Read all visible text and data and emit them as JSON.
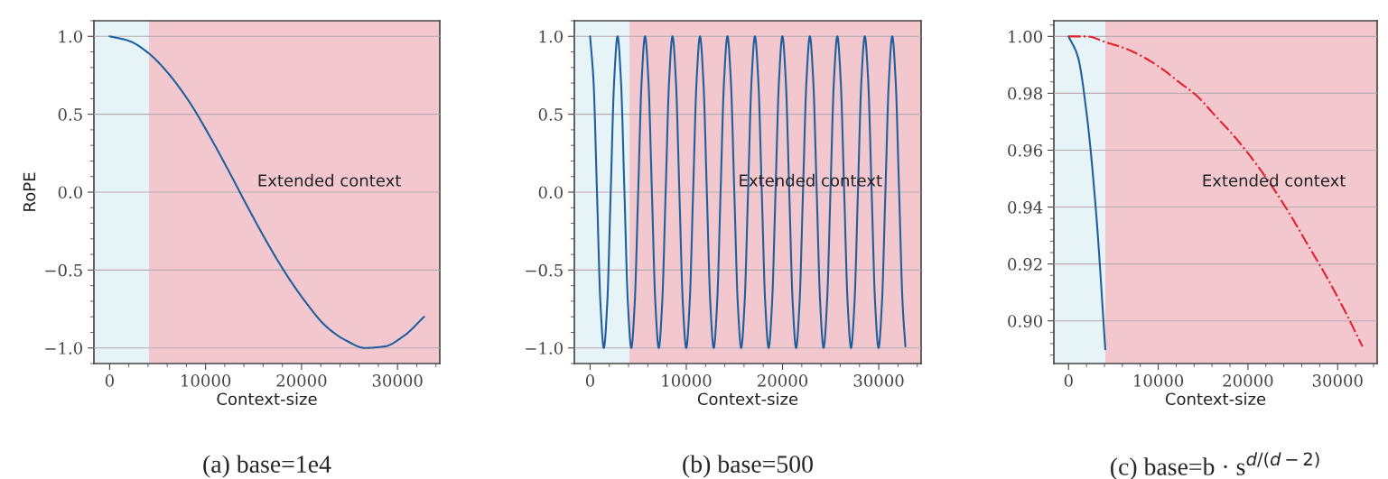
{
  "chart_data": [
    {
      "type": "line",
      "xlabel": "Context-size",
      "ylabel": "RoPE",
      "annotations": [
        "(a) base=1e4"
      ],
      "x": [
        0,
        2048,
        4096,
        6144,
        8192,
        10240,
        12288,
        14336,
        16384,
        18432,
        20480,
        22528,
        24576,
        26624,
        28672,
        30720,
        32768
      ],
      "series": [
        {
          "color": "#1f5f9e",
          "values": [
            1.0,
            0.97,
            0.89,
            0.76,
            0.59,
            0.38,
            0.15,
            -0.09,
            -0.32,
            -0.53,
            -0.71,
            -0.86,
            -0.95,
            -1.0,
            -0.99,
            -0.92,
            -0.8
          ]
        }
      ],
      "xlim": [
        -1638,
        34406
      ],
      "ylim": [
        -1.1,
        1.1
      ],
      "xticks": [
        0,
        10000,
        20000,
        30000
      ],
      "yticks": [
        {
          "value": -1.0,
          "label": "−1.0"
        },
        {
          "value": -0.5,
          "label": "−0.5"
        },
        {
          "value": 0.0,
          "label": "0.0"
        },
        {
          "value": 0.5,
          "label": "0.5"
        },
        {
          "value": 1.0,
          "label": "1.0"
        }
      ],
      "bands": [
        {
          "axis": "x",
          "from": -1638,
          "to": 4096,
          "color": "#e6f4f7"
        },
        {
          "axis": "x",
          "from": 4096,
          "to": 34406,
          "label": "Extended context",
          "color": "#f2c8ce"
        }
      ],
      "grid": "y",
      "marker": "none",
      "line_style": "solid"
    },
    {
      "type": "line",
      "xlabel": "Context-size",
      "annotations": [
        "(b) base=500"
      ],
      "x": [
        0,
        357,
        714,
        1071,
        1428,
        1785,
        2141,
        2498,
        2855,
        3212,
        3569,
        3926,
        4283,
        4640,
        4997,
        5353,
        5710,
        6067,
        6424,
        6781,
        7138,
        7495,
        7852,
        8209,
        8565,
        8922,
        9279,
        9636,
        9993,
        10350,
        10707,
        11064,
        11421,
        11777,
        12134,
        12491,
        12848,
        13205,
        13562,
        13919,
        14276,
        14633,
        14989,
        15346,
        15703,
        16060,
        16417,
        16774,
        17131,
        17488,
        17845,
        18201,
        18558,
        18915,
        19272,
        19629,
        19986,
        20343,
        20700,
        21057,
        21413,
        21770,
        22127,
        22484,
        22841,
        23198,
        23555,
        23912,
        24269,
        24625,
        24982,
        25339,
        25696,
        26053,
        26410,
        26767,
        27124,
        27481,
        27837,
        28194,
        28551,
        28908,
        29265,
        29622,
        29979,
        30336,
        30693,
        31049,
        31406,
        31763,
        32120,
        32477,
        32768
      ],
      "series": [
        {
          "color": "#1f5f9e",
          "values": [
            1,
            0.71,
            0,
            -0.71,
            -1,
            -0.71,
            0,
            0.71,
            1,
            0.71,
            0,
            -0.71,
            -1,
            -0.71,
            0,
            0.71,
            1,
            0.71,
            0,
            -0.71,
            -1,
            -0.71,
            0,
            0.71,
            1,
            0.71,
            0,
            -0.71,
            -1,
            -0.71,
            0,
            0.71,
            1,
            0.71,
            0,
            -0.71,
            -1,
            -0.71,
            0,
            0.71,
            1,
            0.71,
            0,
            -0.71,
            -1,
            -0.71,
            0,
            0.71,
            1,
            0.71,
            0,
            -0.71,
            -1,
            -0.71,
            0,
            0.71,
            1,
            0.71,
            0,
            -0.71,
            -1,
            -0.71,
            0,
            0.71,
            1,
            0.71,
            0,
            -0.71,
            -1,
            -0.71,
            0,
            0.71,
            1,
            0.71,
            0,
            -0.71,
            -1,
            -0.71,
            0,
            0.71,
            1,
            0.71,
            0,
            -0.71,
            -1,
            -0.71,
            0,
            0.71,
            1,
            0.71,
            0,
            -0.71,
            -0.99
          ]
        }
      ],
      "xlim": [
        -1638,
        34406
      ],
      "ylim": [
        -1.1,
        1.1
      ],
      "xticks": [
        0,
        10000,
        20000,
        30000
      ],
      "yticks": [
        {
          "value": -1.0,
          "label": "−1.0"
        },
        {
          "value": -0.5,
          "label": "−0.5"
        },
        {
          "value": 0.0,
          "label": "0.0"
        },
        {
          "value": 0.5,
          "label": "0.5"
        },
        {
          "value": 1.0,
          "label": "1.0"
        }
      ],
      "bands": [
        {
          "axis": "x",
          "from": -1638,
          "to": 4096,
          "color": "#e6f4f7"
        },
        {
          "axis": "x",
          "from": 4096,
          "to": 34406,
          "label": "Extended context",
          "color": "#f2c8ce"
        }
      ],
      "grid": "y",
      "marker": "none",
      "line_style": "solid"
    },
    {
      "type": "line",
      "xlabel": "Context-size",
      "annotations": [
        "(c) base=b · s$^{d/(d−2)}$"
      ],
      "series": [
        {
          "color": "#1f5f9e",
          "x": [
            0,
            1024,
            2048,
            3072,
            4096
          ],
          "values": [
            1.0,
            0.993,
            0.972,
            0.938,
            0.89
          ]
        },
        {
          "color": "#e3202b",
          "line_style": "dashdot",
          "x": [
            0,
            2048,
            4096,
            6144,
            8192,
            10240,
            12288,
            14336,
            16384,
            18432,
            20480,
            22528,
            24576,
            26624,
            28672,
            30720,
            32768
          ],
          "values": [
            1.0,
            1.0,
            0.998,
            0.996,
            0.993,
            0.989,
            0.984,
            0.979,
            0.972,
            0.965,
            0.957,
            0.948,
            0.938,
            0.927,
            0.916,
            0.904,
            0.891
          ]
        }
      ],
      "xlim": [
        -1638,
        34406
      ],
      "ylim": [
        0.885,
        1.0055
      ],
      "xticks": [
        0,
        10000,
        20000,
        30000
      ],
      "yticks": [
        {
          "value": 0.9,
          "label": "0.90"
        },
        {
          "value": 0.92,
          "label": "0.92"
        },
        {
          "value": 0.94,
          "label": "0.94"
        },
        {
          "value": 0.96,
          "label": "0.96"
        },
        {
          "value": 0.98,
          "label": "0.98"
        },
        {
          "value": 1.0,
          "label": "1.00"
        }
      ],
      "bands": [
        {
          "axis": "x",
          "from": -1638,
          "to": 4096,
          "color": "#e6f4f7"
        },
        {
          "axis": "x",
          "from": 4096,
          "to": 34406,
          "label": "Extended context",
          "color": "#f2c8ce"
        }
      ],
      "grid": "y",
      "marker": "none",
      "line_style": "solid"
    }
  ]
}
